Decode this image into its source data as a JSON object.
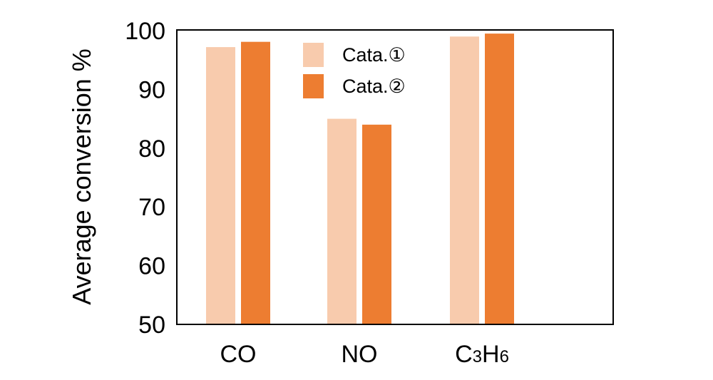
{
  "chart_data": {
    "type": "bar",
    "title": "",
    "xlabel": "",
    "ylabel": "Average conversion %",
    "ylim": [
      50,
      100
    ],
    "yticks": [
      "50",
      "60",
      "70",
      "80",
      "90",
      "100"
    ],
    "categories": [
      "CO",
      "NO",
      "C3H6"
    ],
    "category_labels": [
      {
        "main": "CO",
        "parts": []
      },
      {
        "main": "NO",
        "parts": []
      },
      {
        "main": "C",
        "parts": [
          "3",
          "H",
          "6"
        ]
      }
    ],
    "series": [
      {
        "name": "Cata.①",
        "color": "#F8CBAD",
        "values": [
          97.2,
          85.0,
          99.0
        ]
      },
      {
        "name": "Cata.②",
        "color": "#ED7D31",
        "values": [
          98.1,
          84.0,
          99.5
        ]
      }
    ],
    "grid": false,
    "legend_position": "top-center"
  }
}
